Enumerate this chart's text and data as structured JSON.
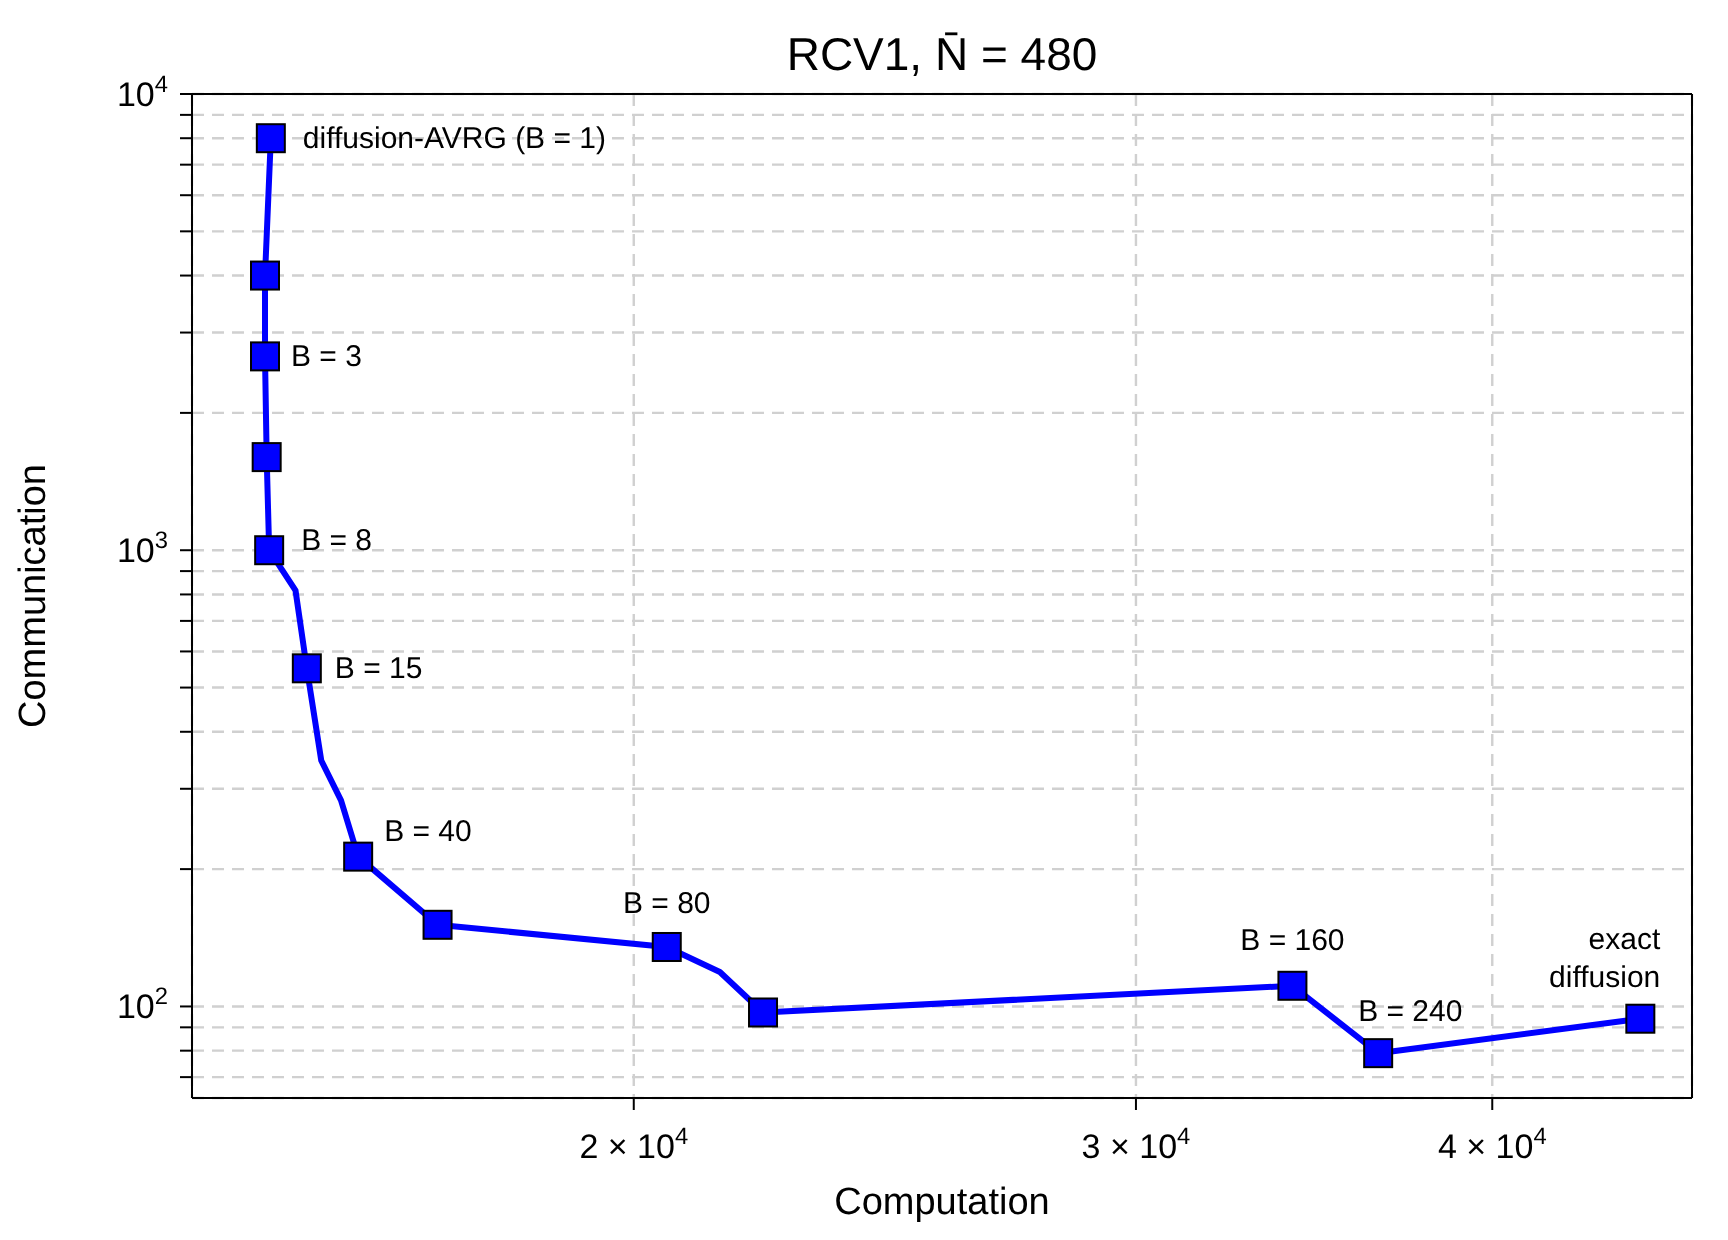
{
  "chart_data": {
    "type": "line",
    "title": "RCV1, N̄ = 480",
    "xlabel": "Computation",
    "ylabel": "Communication",
    "log": "xy",
    "grid": true,
    "xlim": [
      14000,
      47000
    ],
    "xticks": [
      {
        "value": 20000,
        "label": "2 × 10$^{4}$"
      },
      {
        "value": 30000,
        "label": "3 × 10$^{4}$"
      },
      {
        "value": 40000,
        "label": "4 × 10$^{4}$"
      }
    ],
    "ylim": [
      63,
      10000
    ],
    "yticks": [
      {
        "value": 70,
        "label": null
      },
      {
        "value": 80,
        "label": null
      },
      {
        "value": 90,
        "label": null
      },
      {
        "value": 100,
        "label": "10$^{2}$"
      },
      {
        "value": 200,
        "label": null
      },
      {
        "value": 300,
        "label": null
      },
      {
        "value": 400,
        "label": null
      },
      {
        "value": 500,
        "label": null
      },
      {
        "value": 600,
        "label": null
      },
      {
        "value": 700,
        "label": null
      },
      {
        "value": 800,
        "label": null
      },
      {
        "value": 900,
        "label": null
      },
      {
        "value": 1000,
        "label": "10$^{3}$"
      },
      {
        "value": 2000,
        "label": null
      },
      {
        "value": 3000,
        "label": null
      },
      {
        "value": 4000,
        "label": null
      },
      {
        "value": 5000,
        "label": null
      },
      {
        "value": 6000,
        "label": null
      },
      {
        "value": 7000,
        "label": null
      },
      {
        "value": 8000,
        "label": null
      },
      {
        "value": 9000,
        "label": null
      },
      {
        "value": 10000,
        "label": "10$^{4}$"
      }
    ],
    "series": [
      {
        "marker": "none",
        "color": "#0000ff",
        "x": [
          14920,
          14850,
          14850,
          14870,
          14900,
          15220,
          15360,
          15540,
          15790,
          16010,
          17070,
          20540,
          21440,
          22200,
          34040,
          36480,
          45080
        ],
        "values": [
          8000,
          4000,
          2660,
          1600,
          1000,
          817,
          551,
          346,
          283,
          213,
          151,
          135,
          119,
          97,
          111,
          79,
          94
        ]
      },
      {
        "type": "scatter",
        "marker": "square",
        "color": "#0000ff",
        "x": [
          14920,
          14850,
          14850,
          14870,
          14900,
          15360,
          16010,
          17070,
          20540,
          22200,
          34040,
          36480,
          45080
        ],
        "values": [
          8000,
          4000,
          2660,
          1600,
          1000,
          551,
          213,
          151,
          135,
          97,
          111,
          79,
          94
        ]
      }
    ],
    "annotations": [
      {
        "text": "diffusion-AVRG (B = 1)",
        "x": 14920,
        "y": 8000
      },
      {
        "text": "B = 3",
        "x": 14850,
        "y": 2660
      },
      {
        "text": "B = 8",
        "x": 14900,
        "y": 1000
      },
      {
        "text": "B = 15",
        "x": 15360,
        "y": 551
      },
      {
        "text": "B = 40",
        "x": 16010,
        "y": 213
      },
      {
        "text": "B = 80",
        "x": 20540,
        "y": 135
      },
      {
        "text": "B = 160",
        "x": 34040,
        "y": 111
      },
      {
        "text": "B = 240",
        "x": 36480,
        "y": 79
      },
      {
        "text": "exact\ndiffusion",
        "x": 45080,
        "y": 94
      }
    ]
  }
}
